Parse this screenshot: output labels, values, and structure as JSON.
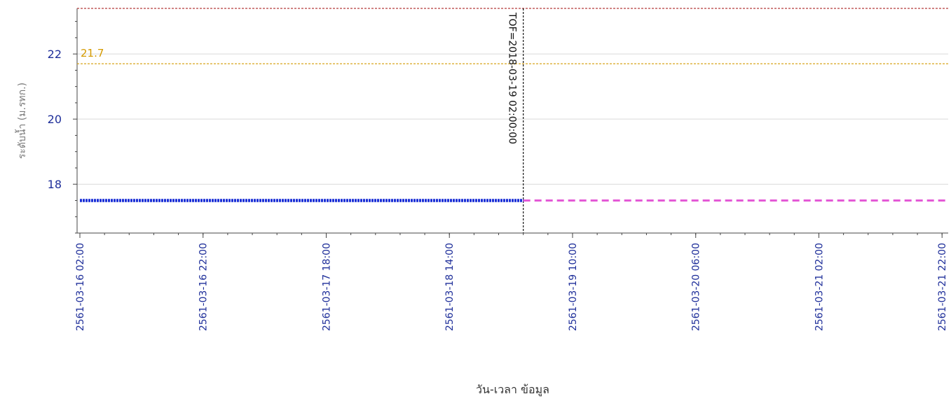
{
  "chart_data": {
    "type": "line",
    "xlabel": "วัน-เวลา ข้อมูล",
    "ylabel": "ระดับน้ำ (ม.รทก.)",
    "ylim": [
      16.5,
      23.4
    ],
    "xlim": [
      "2561-03-16 02:00",
      "2561-03-21 23:00"
    ],
    "y_ticks": [
      18,
      20,
      22
    ],
    "x_ticks": [
      "2561-03-16 02:00",
      "2561-03-16 22:00",
      "2561-03-17 18:00",
      "2561-03-18 14:00",
      "2561-03-19 10:00",
      "2561-03-20 06:00",
      "2561-03-21 02:00",
      "2561-03-21 22:00"
    ],
    "series": [
      {
        "kind": "observed",
        "color": "#1a2fd6",
        "x": [
          "2561-03-16 02:00",
          "2561-03-19 02:00"
        ],
        "y": [
          17.5,
          17.5
        ]
      },
      {
        "kind": "forecast",
        "color": "#e45ad6",
        "x": [
          "2561-03-19 02:00",
          "2561-03-21 23:00"
        ],
        "y": [
          17.5,
          17.5
        ]
      }
    ],
    "hlines": [
      {
        "y": 23.4,
        "color": "#b33a3a"
      },
      {
        "y": 21.7,
        "color": "#d49a00",
        "label": "21.7"
      }
    ],
    "vline": {
      "x": "2561-03-19 02:00",
      "color": "#111111",
      "label": "TOF=2018-03-19 02:00:00"
    },
    "grid": "horizontal"
  }
}
